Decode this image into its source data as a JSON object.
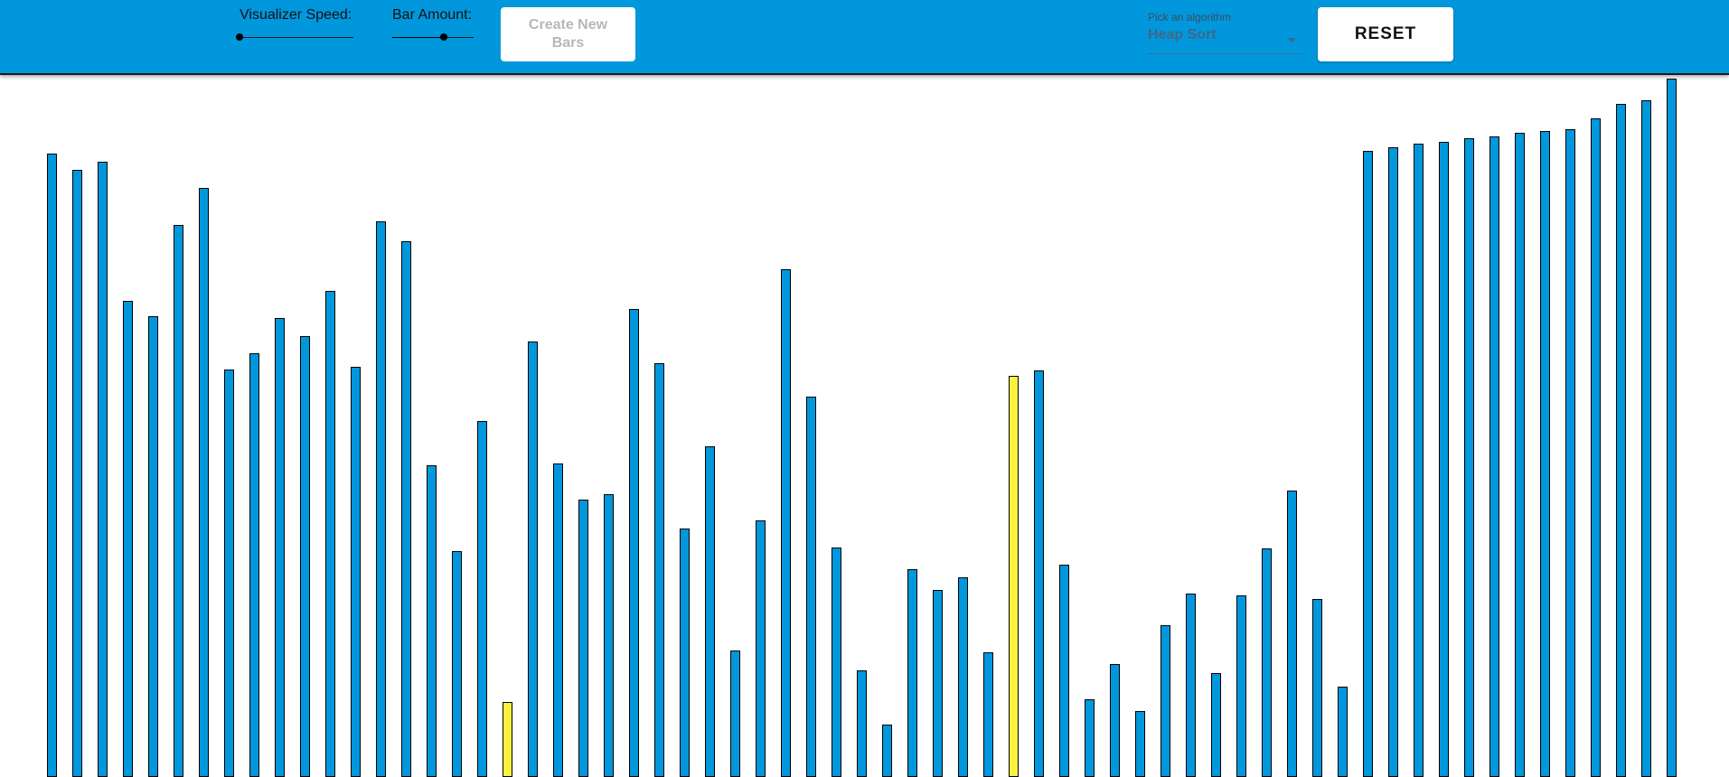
{
  "toolbar": {
    "speed_label": "Visualizer Speed:",
    "speed_value": 0,
    "amount_label": "Bar Amount:",
    "amount_value": 0.63,
    "create_label": "Create New Bars",
    "algorithm_caption": "Pick an algorithm",
    "algorithm_selected": "Heap Sort",
    "reset_label": "RESET"
  },
  "colors": {
    "toolbar_bg": "#0197dc",
    "bar_default": "#0197dc",
    "bar_compare": "#faf13f"
  },
  "bars": {
    "max_value": 773,
    "highlighted_indices": [
      18,
      38
    ],
    "values": [
      690,
      672,
      681,
      527,
      510,
      611,
      652,
      451,
      469,
      508,
      488,
      538,
      454,
      615,
      593,
      345,
      250,
      394,
      83,
      482,
      347,
      307,
      313,
      518,
      458,
      275,
      366,
      140,
      284,
      562,
      421,
      254,
      118,
      58,
      230,
      207,
      221,
      138,
      444,
      450,
      235,
      86,
      125,
      73,
      168,
      203,
      115,
      201,
      253,
      317,
      197,
      100,
      693,
      697,
      701,
      703,
      707,
      709,
      713,
      715,
      717,
      729,
      745,
      749,
      773
    ]
  }
}
